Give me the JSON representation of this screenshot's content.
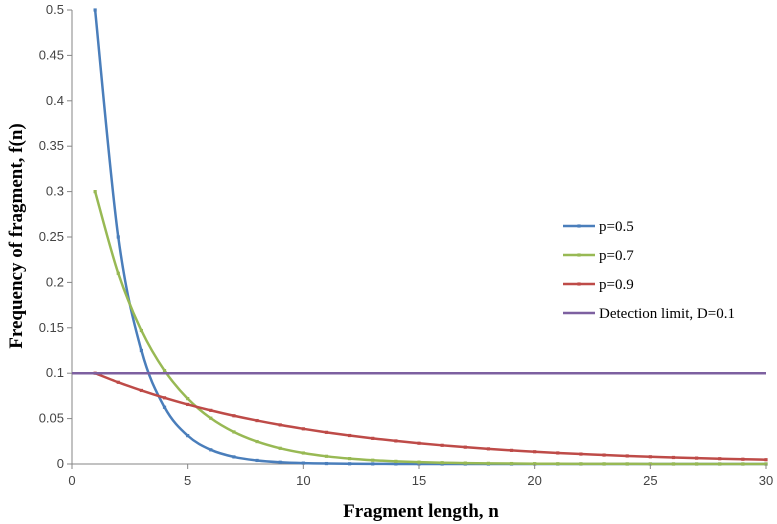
{
  "chart_data": {
    "type": "line",
    "title": "",
    "xlabel": "Fragment length, n",
    "ylabel": "Frequency of fragment, f(n)",
    "xlim": [
      0,
      30
    ],
    "ylim": [
      0,
      0.5
    ],
    "xticks": [
      0,
      5,
      10,
      15,
      20,
      25,
      30
    ],
    "yticks": [
      0,
      0.05,
      0.1,
      0.15,
      0.2,
      0.25,
      0.3,
      0.35,
      0.4,
      0.45,
      0.5
    ],
    "grid": false,
    "legend_position": "right",
    "x": [
      1,
      2,
      3,
      4,
      5,
      6,
      7,
      8,
      9,
      10,
      11,
      12,
      13,
      14,
      15,
      16,
      17,
      18,
      19,
      20,
      21,
      22,
      23,
      24,
      25,
      26,
      27,
      28,
      29,
      30
    ],
    "series": [
      {
        "name": "p=0.5",
        "color": "#4a7ebb",
        "values": [
          0.5,
          0.25,
          0.125,
          0.0625,
          0.03125,
          0.015625,
          0.0078125,
          0.0039063,
          0.0019531,
          0.0009766,
          0.0004883,
          0.0002441,
          0.0001221,
          6.1e-05,
          3.05e-05,
          1.53e-05,
          7.6e-06,
          3.8e-06,
          1.9e-06,
          1e-06,
          0,
          0,
          0,
          0,
          0,
          0,
          0,
          0,
          0,
          0
        ]
      },
      {
        "name": "p=0.7",
        "color": "#98b954",
        "values": [
          0.3,
          0.21,
          0.147,
          0.1029,
          0.07203,
          0.050421,
          0.035295,
          0.024706,
          0.017294,
          0.012106,
          0.008474,
          0.005932,
          0.004152,
          0.002907,
          0.002035,
          0.001424,
          0.000997,
          0.000698,
          0.000489,
          0.000342,
          0.000239,
          0.000168,
          0.000117,
          8.2e-05,
          5.8e-05,
          4e-05,
          2.8e-05,
          2e-05,
          1.4e-05,
          1e-05
        ]
      },
      {
        "name": "p=0.9",
        "color": "#be4b48",
        "values": [
          0.1,
          0.09,
          0.081,
          0.0729,
          0.06561,
          0.059049,
          0.053144,
          0.04783,
          0.043047,
          0.038742,
          0.034868,
          0.031381,
          0.028243,
          0.025419,
          0.022877,
          0.020589,
          0.01853,
          0.016677,
          0.015009,
          0.013509,
          0.012158,
          0.010942,
          0.009848,
          0.008863,
          0.007977,
          0.007179,
          0.006461,
          0.005815,
          0.005233,
          0.00471
        ]
      },
      {
        "name": "Detection limit, D=0.1",
        "color": "#7d60a0",
        "values": [
          0.1,
          0.1,
          0.1,
          0.1,
          0.1,
          0.1,
          0.1,
          0.1,
          0.1,
          0.1,
          0.1,
          0.1,
          0.1,
          0.1,
          0.1,
          0.1,
          0.1,
          0.1,
          0.1,
          0.1,
          0.1,
          0.1,
          0.1,
          0.1,
          0.1,
          0.1,
          0.1,
          0.1,
          0.1,
          0.1
        ]
      }
    ]
  }
}
